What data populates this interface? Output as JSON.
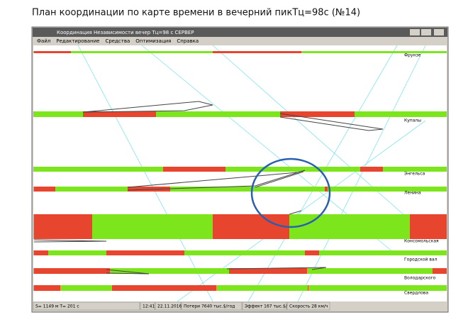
{
  "heading": "План координации по карте времени в вечерний пикТц=98с (№14)",
  "window": {
    "title": "Координация  Независимости  вечер    Тц=98 с СЕРВЕР",
    "menu": [
      "Файл",
      "Редактирование",
      "Средства",
      "Оптимизация",
      "Справка"
    ]
  },
  "intersections": [
    "Фрунзе",
    "Купалы",
    "Энгельса",
    "Ленина",
    "Консомольская",
    "Городской вал",
    "Володарского",
    "Свердлова"
  ],
  "status": [
    "S= 1149 м  T= 201 с",
    "12:41",
    "22.11.2016",
    "Потери  7640 тыс.$/год",
    "Эффект  167 тыс.$/год",
    "Скорость  28 км/ч"
  ]
}
